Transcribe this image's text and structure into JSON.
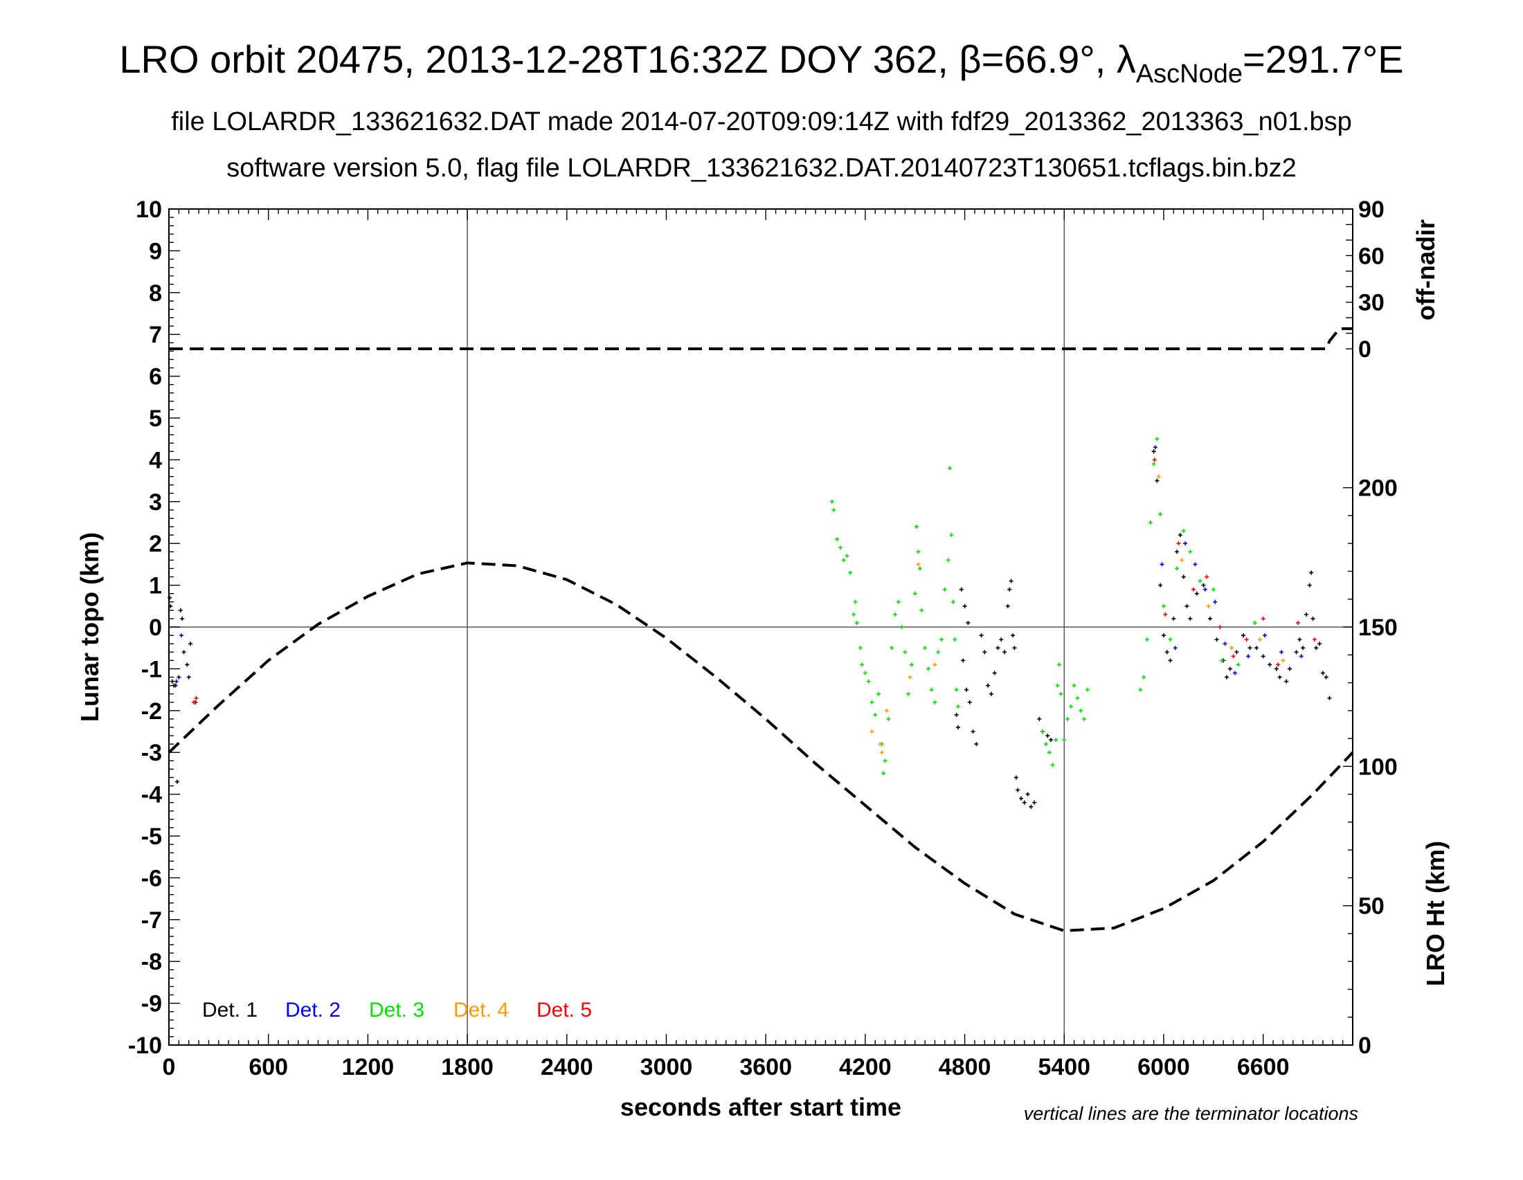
{
  "chart_data": {
    "type": "scatter",
    "title": "LRO orbit 20475, 2013-12-28T16:32Z DOY 362, β=66.9°, λ",
    "title_sub": "AscNode",
    "title_tail": "=291.7°E",
    "subtitle1": "file LOLARDR_133621632.DAT made 2014-07-20T09:09:14Z with fdf29_2013362_2013363_n01.bsp",
    "subtitle2": "software version 5.0, flag file LOLARDR_133621632.DAT.20140723T130651.tcflags.bin.bz2",
    "xlabel": "seconds after start time",
    "ylabel": "Lunar topo (km)",
    "ylabel_right_top": "off-nadir",
    "ylabel_right_bottom": "LRO Ht (km)",
    "note": "vertical lines are the terminator locations",
    "xlim": [
      0,
      7140
    ],
    "ylim": [
      -10,
      10
    ],
    "x_ticks": [
      "0",
      "600",
      "1200",
      "1800",
      "2400",
      "3000",
      "3600",
      "4200",
      "4800",
      "5400",
      "6000",
      "6600"
    ],
    "y_ticks": [
      "10",
      "9",
      "8",
      "7",
      "6",
      "5",
      "4",
      "3",
      "2",
      "1",
      "0",
      "-1",
      "-2",
      "-3",
      "-4",
      "-5",
      "-6",
      "-7",
      "-8",
      "-9",
      "-10"
    ],
    "right_top_ticks": [
      "90",
      "60",
      "30",
      "0"
    ],
    "right_bottom_ticks": [
      "200",
      "150",
      "100",
      "50",
      "0"
    ],
    "terminator_lines_x": [
      1800,
      5400
    ],
    "zero_line_y": 0,
    "legend": [
      {
        "label": "Det. 1",
        "color": "#000000"
      },
      {
        "label": "Det. 2",
        "color": "#0000ff"
      },
      {
        "label": "Det. 3",
        "color": "#00e000"
      },
      {
        "label": "Det. 4",
        "color": "#ff9900"
      },
      {
        "label": "Det. 5",
        "color": "#ff0000"
      }
    ],
    "off_nadir_deg": {
      "x": [
        0,
        6980,
        7000,
        7060,
        7140
      ],
      "y": [
        0,
        0,
        5,
        13,
        13
      ]
    },
    "lro_height_km": {
      "x": [
        0,
        300,
        600,
        900,
        1200,
        1500,
        1800,
        2100,
        2400,
        2700,
        3000,
        3300,
        3600,
        3900,
        4200,
        4500,
        4800,
        5100,
        5400,
        5700,
        6000,
        6300,
        6600,
        6900,
        7140
      ],
      "y": [
        105,
        122,
        138,
        151,
        161,
        169,
        173,
        172,
        167,
        158,
        146,
        132,
        117,
        101,
        86,
        71,
        58,
        47,
        41,
        42,
        49,
        59,
        73,
        90,
        105
      ]
    },
    "series": [
      {
        "name": "Det. 1",
        "points": [
          [
            5,
            0.7
          ],
          [
            10,
            0.5
          ],
          [
            20,
            -1.3
          ],
          [
            30,
            -1.4
          ],
          [
            40,
            -1.4
          ],
          [
            50,
            -3.7
          ],
          [
            60,
            -1.2
          ],
          [
            70,
            0.4
          ],
          [
            80,
            0.2
          ],
          [
            90,
            -0.6
          ],
          [
            110,
            -0.9
          ],
          [
            120,
            -1.2
          ],
          [
            130,
            -0.4
          ],
          [
            160,
            -1.8
          ],
          [
            4780,
            0.9
          ],
          [
            4800,
            0.5
          ],
          [
            4820,
            0.1
          ],
          [
            4790,
            -0.8
          ],
          [
            4810,
            -1.5
          ],
          [
            4830,
            -1.8
          ],
          [
            4850,
            -2.5
          ],
          [
            4870,
            -2.8
          ],
          [
            4750,
            -2.1
          ],
          [
            4760,
            -2.4
          ],
          [
            4900,
            -0.2
          ],
          [
            4920,
            -0.6
          ],
          [
            4940,
            -1.4
          ],
          [
            4960,
            -1.6
          ],
          [
            4980,
            -1.1
          ],
          [
            5000,
            -0.5
          ],
          [
            5020,
            -0.3
          ],
          [
            5040,
            -0.6
          ],
          [
            5060,
            0.5
          ],
          [
            5070,
            0.9
          ],
          [
            5080,
            1.1
          ],
          [
            5090,
            -0.2
          ],
          [
            5100,
            -0.5
          ],
          [
            5110,
            -3.6
          ],
          [
            5120,
            -3.9
          ],
          [
            5140,
            -4.1
          ],
          [
            5160,
            -4.2
          ],
          [
            5180,
            -4.0
          ],
          [
            5200,
            -4.3
          ],
          [
            5220,
            -4.2
          ],
          [
            5250,
            -2.2
          ],
          [
            5270,
            -2.5
          ],
          [
            5300,
            -2.6
          ],
          [
            5320,
            -2.7
          ],
          [
            5940,
            4.2
          ],
          [
            5960,
            3.5
          ],
          [
            5980,
            1.0
          ],
          [
            6000,
            -0.2
          ],
          [
            6020,
            -0.6
          ],
          [
            6040,
            -0.8
          ],
          [
            6060,
            0.2
          ],
          [
            6080,
            1.8
          ],
          [
            6100,
            2.2
          ],
          [
            6120,
            1.2
          ],
          [
            6140,
            0.5
          ],
          [
            6160,
            0.2
          ],
          [
            6200,
            0.8
          ],
          [
            6240,
            1.0
          ],
          [
            6280,
            0.2
          ],
          [
            6320,
            -0.3
          ],
          [
            6360,
            -0.8
          ],
          [
            6380,
            -1.2
          ],
          [
            6400,
            -1.0
          ],
          [
            6440,
            -0.6
          ],
          [
            6480,
            -0.2
          ],
          [
            6520,
            -0.5
          ],
          [
            6560,
            -0.5
          ],
          [
            6600,
            -0.7
          ],
          [
            6640,
            -0.9
          ],
          [
            6680,
            -1.0
          ],
          [
            6700,
            -1.2
          ],
          [
            6740,
            -1.3
          ],
          [
            6760,
            -1.0
          ],
          [
            6800,
            -0.6
          ],
          [
            6820,
            -0.3
          ],
          [
            6840,
            -0.5
          ],
          [
            6860,
            0.3
          ],
          [
            6880,
            1.0
          ],
          [
            6890,
            1.3
          ],
          [
            6900,
            0.2
          ],
          [
            6920,
            -0.5
          ],
          [
            6940,
            -0.4
          ],
          [
            6960,
            -1.1
          ],
          [
            6980,
            -1.2
          ],
          [
            7000,
            -1.7
          ]
        ]
      },
      {
        "name": "Det. 2",
        "points": [
          [
            45,
            -1.3
          ],
          [
            75,
            -0.2
          ],
          [
            5950,
            4.3
          ],
          [
            5990,
            1.5
          ],
          [
            6070,
            -0.5
          ],
          [
            6130,
            2.0
          ],
          [
            6190,
            1.5
          ],
          [
            6250,
            0.9
          ],
          [
            6310,
            0.6
          ],
          [
            6370,
            -0.4
          ],
          [
            6430,
            -1.1
          ],
          [
            6510,
            -0.7
          ],
          [
            6610,
            -0.2
          ],
          [
            6710,
            -0.6
          ],
          [
            6830,
            -0.7
          ]
        ]
      },
      {
        "name": "Det. 3",
        "points": [
          [
            4000,
            3.0
          ],
          [
            4010,
            2.8
          ],
          [
            4030,
            2.1
          ],
          [
            4050,
            1.9
          ],
          [
            4070,
            1.6
          ],
          [
            4090,
            1.7
          ],
          [
            4110,
            1.3
          ],
          [
            4130,
            0.3
          ],
          [
            4140,
            0.6
          ],
          [
            4150,
            0.1
          ],
          [
            4170,
            -0.5
          ],
          [
            4180,
            -0.9
          ],
          [
            4200,
            -1.1
          ],
          [
            4220,
            -1.3
          ],
          [
            4240,
            -1.8
          ],
          [
            4260,
            -2.1
          ],
          [
            4280,
            -1.6
          ],
          [
            4300,
            -2.8
          ],
          [
            4310,
            -3.5
          ],
          [
            4320,
            -3.2
          ],
          [
            4340,
            -2.2
          ],
          [
            4360,
            -0.5
          ],
          [
            4380,
            0.3
          ],
          [
            4400,
            0.6
          ],
          [
            4420,
            0.0
          ],
          [
            4440,
            -0.6
          ],
          [
            4460,
            -1.6
          ],
          [
            4480,
            -0.9
          ],
          [
            4500,
            0.8
          ],
          [
            4510,
            2.4
          ],
          [
            4520,
            1.8
          ],
          [
            4530,
            1.4
          ],
          [
            4540,
            0.4
          ],
          [
            4560,
            -0.5
          ],
          [
            4580,
            -1.0
          ],
          [
            4600,
            -1.5
          ],
          [
            4620,
            -1.8
          ],
          [
            4640,
            -0.6
          ],
          [
            4660,
            -0.3
          ],
          [
            4680,
            0.9
          ],
          [
            4700,
            1.6
          ],
          [
            4710,
            3.8
          ],
          [
            4720,
            2.2
          ],
          [
            4730,
            0.6
          ],
          [
            4740,
            -0.3
          ],
          [
            4750,
            -1.5
          ],
          [
            4760,
            -1.9
          ],
          [
            5270,
            -2.5
          ],
          [
            5290,
            -2.8
          ],
          [
            5310,
            -3.0
          ],
          [
            5330,
            -3.3
          ],
          [
            5350,
            -2.7
          ],
          [
            5360,
            -1.4
          ],
          [
            5370,
            -0.9
          ],
          [
            5380,
            -1.6
          ],
          [
            5400,
            -2.7
          ],
          [
            5420,
            -2.2
          ],
          [
            5440,
            -1.9
          ],
          [
            5460,
            -1.4
          ],
          [
            5480,
            -1.7
          ],
          [
            5500,
            -2.0
          ],
          [
            5520,
            -2.2
          ],
          [
            5540,
            -1.5
          ],
          [
            5860,
            -1.5
          ],
          [
            5880,
            -1.2
          ],
          [
            5900,
            -0.3
          ],
          [
            5920,
            2.5
          ],
          [
            5940,
            3.9
          ],
          [
            5960,
            4.5
          ],
          [
            5980,
            2.7
          ],
          [
            6000,
            0.5
          ],
          [
            6040,
            -0.3
          ],
          [
            6080,
            1.4
          ],
          [
            6120,
            2.3
          ],
          [
            6160,
            1.8
          ],
          [
            6220,
            1.1
          ],
          [
            6300,
            0.9
          ],
          [
            6350,
            -0.8
          ],
          [
            6450,
            -0.9
          ],
          [
            6550,
            0.1
          ]
        ]
      },
      {
        "name": "Det. 4",
        "points": [
          [
            4240,
            -2.5
          ],
          [
            4290,
            -2.8
          ],
          [
            4300,
            -3.0
          ],
          [
            4330,
            -2.0
          ],
          [
            4470,
            -1.2
          ],
          [
            4520,
            1.5
          ],
          [
            4620,
            -0.9
          ],
          [
            5970,
            3.6
          ],
          [
            6110,
            1.6
          ],
          [
            6270,
            0.5
          ],
          [
            6410,
            -0.5
          ],
          [
            6580,
            -0.3
          ],
          [
            6720,
            -0.8
          ]
        ]
      },
      {
        "name": "Det. 5",
        "points": [
          [
            150,
            -1.8
          ],
          [
            165,
            -1.7
          ],
          [
            5945,
            4.0
          ],
          [
            6010,
            0.3
          ],
          [
            6090,
            2.0
          ],
          [
            6180,
            0.9
          ],
          [
            6260,
            1.2
          ],
          [
            6340,
            0.0
          ],
          [
            6420,
            -0.7
          ],
          [
            6500,
            -0.3
          ],
          [
            6600,
            0.2
          ],
          [
            6690,
            -0.9
          ],
          [
            6810,
            0.1
          ],
          [
            6910,
            -0.3
          ]
        ]
      }
    ]
  }
}
